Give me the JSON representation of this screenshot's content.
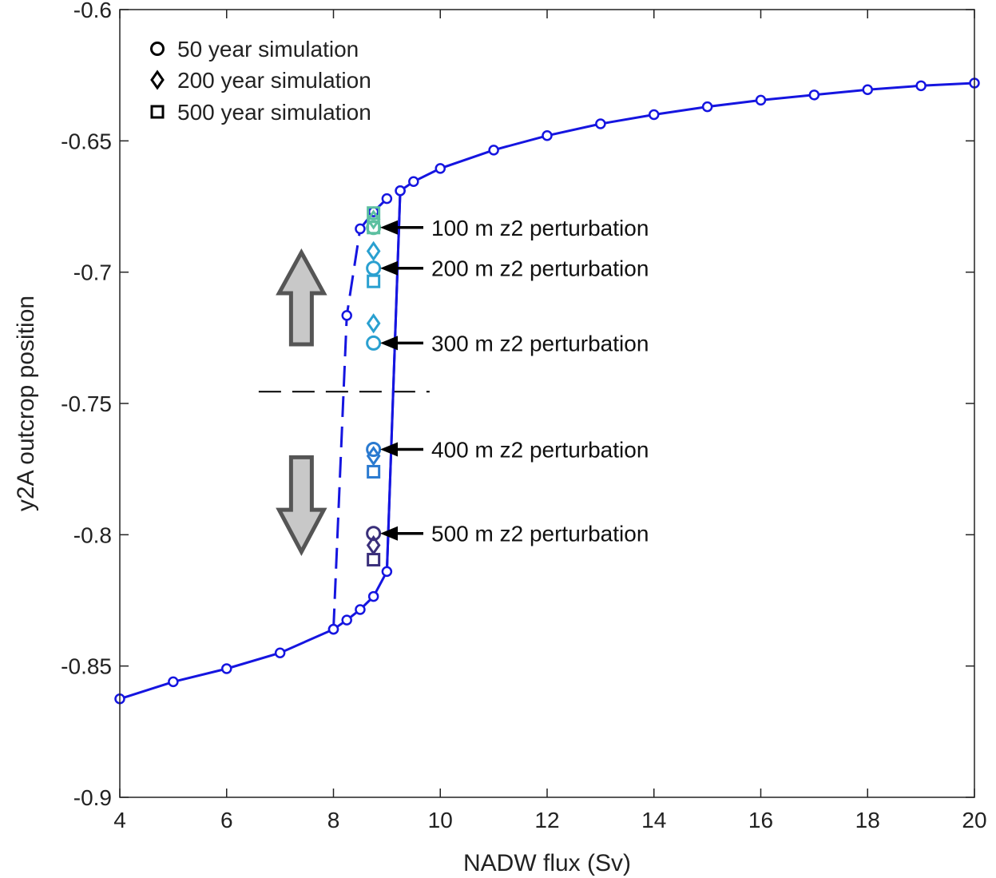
{
  "chart_data": {
    "type": "line",
    "xlabel": "NADW flux (Sv)",
    "ylabel": "y2A outcrop position",
    "xlim": [
      4,
      20
    ],
    "ylim": [
      -0.9,
      -0.6
    ],
    "x_ticks": [
      "4",
      "6",
      "8",
      "10",
      "12",
      "14",
      "16",
      "18",
      "20"
    ],
    "y_ticks": [
      "-0.6",
      "-0.65",
      "-0.7",
      "-0.75",
      "-0.8",
      "-0.85",
      "-0.9"
    ],
    "grid": false,
    "legend_position": "top-left",
    "colors": {
      "curve": "#1515e0",
      "arrow_fill": "#c8c8c8",
      "arrow_stroke": "#555555",
      "marker_100m": "#5cc0a0",
      "marker_200m": "#2aa0d0",
      "marker_300m": "#2aa0d0",
      "marker_400m": "#2a7ad0",
      "marker_500m": "#3a2f7a"
    },
    "series": [
      {
        "style": "solid",
        "points": [
          [
            4,
            -0.8625
          ],
          [
            5,
            -0.856
          ],
          [
            6,
            -0.851
          ],
          [
            7,
            -0.845
          ],
          [
            8,
            -0.836
          ],
          [
            8.25,
            -0.8325
          ],
          [
            8.5,
            -0.8285
          ],
          [
            8.75,
            -0.8235
          ],
          [
            9,
            -0.814
          ],
          [
            9.25,
            -0.669
          ],
          [
            9.5,
            -0.6655
          ],
          [
            10,
            -0.6605
          ],
          [
            11,
            -0.6535
          ],
          [
            12,
            -0.648
          ],
          [
            13,
            -0.6435
          ],
          [
            14,
            -0.64
          ],
          [
            15,
            -0.637
          ],
          [
            16,
            -0.6345
          ],
          [
            17,
            -0.6325
          ],
          [
            18,
            -0.6305
          ],
          [
            19,
            -0.629
          ],
          [
            20,
            -0.628
          ]
        ],
        "vertical_branch": [
          [
            9.25,
            -0.669
          ],
          [
            9.0,
            -0.814
          ]
        ]
      },
      {
        "style": "dashed",
        "points": [
          [
            8.0,
            -0.836
          ],
          [
            8.25,
            -0.7165
          ],
          [
            8.5,
            -0.6835
          ],
          [
            8.75,
            -0.677
          ],
          [
            9.0,
            -0.672
          ],
          [
            9.25,
            -0.669
          ]
        ]
      }
    ],
    "perturbations": [
      {
        "label": "100 m z2 perturbation",
        "x": 8.75,
        "color_key": "marker_100m",
        "y_50yr": -0.683,
        "y_200yr": -0.68,
        "y_500yr": [
          -0.6775,
          -0.683
        ]
      },
      {
        "label": "200 m z2 perturbation",
        "x": 8.75,
        "color_key": "marker_200m",
        "y_50yr": -0.6985,
        "y_200yr": -0.692,
        "y_500yr": [
          -0.7035
        ]
      },
      {
        "label": "300 m z2 perturbation",
        "x": 8.75,
        "color_key": "marker_300m",
        "y_50yr": -0.727,
        "y_200yr": -0.7195,
        "y_500yr": []
      },
      {
        "label": "400 m z2 perturbation",
        "x": 8.75,
        "color_key": "marker_400m",
        "y_50yr": -0.7675,
        "y_200yr": -0.77,
        "y_500yr": [
          -0.776
        ]
      },
      {
        "label": "500 m z2 perturbation",
        "x": 8.75,
        "color_key": "marker_500m",
        "y_50yr": -0.7995,
        "y_200yr": -0.804,
        "y_500yr": [
          -0.8095
        ]
      }
    ],
    "threshold_line": {
      "y": -0.7455,
      "x_range": [
        6.6,
        9.8
      ],
      "style": "dashed",
      "color": "#000000"
    },
    "direction_arrows": [
      {
        "direction": "up",
        "x": 7.4
      },
      {
        "direction": "down",
        "x": 7.4
      }
    ],
    "legend": [
      {
        "marker": "circle",
        "label": "50 year simulation"
      },
      {
        "marker": "diamond",
        "label": "200 year simulation"
      },
      {
        "marker": "square",
        "label": "500 year simulation"
      }
    ]
  }
}
